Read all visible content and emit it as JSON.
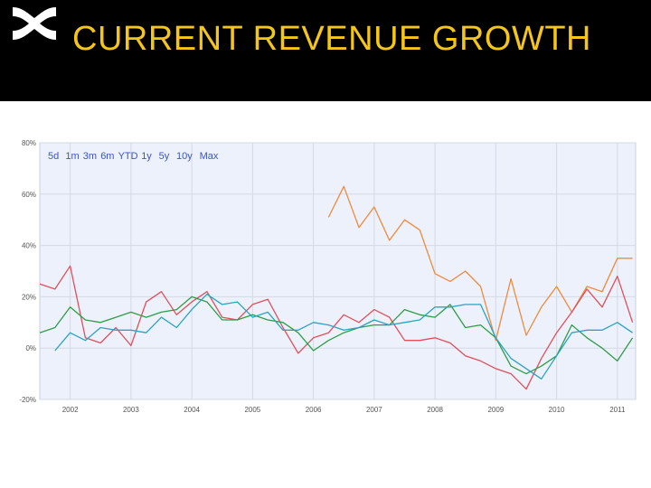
{
  "header": {
    "title": "CURRENT REVENUE GROWTH",
    "logo_icon": "under-armour-logo-icon",
    "title_color": "#f5c518",
    "background": "#000000"
  },
  "range_selector": [
    "5d",
    "1m",
    "3m",
    "6m",
    "YTD",
    "1y",
    "5y",
    "10y",
    "Max"
  ],
  "chart_data": {
    "type": "line",
    "title": "",
    "xlabel": "",
    "ylabel": "",
    "x_ticks": [
      "2002",
      "2003",
      "2004",
      "2005",
      "2006",
      "2007",
      "2008",
      "2009",
      "2010",
      "2011"
    ],
    "y_ticks": [
      "-20%",
      "0%",
      "20%",
      "40%",
      "60%",
      "80%"
    ],
    "ylim": [
      -20,
      80
    ],
    "xlim": [
      2001.5,
      2011.3
    ],
    "grid": true,
    "plot_background": "#edf1fb",
    "series": [
      {
        "color": "#f08a3c",
        "x": [
          2006.25,
          2006.5,
          2006.75,
          2007.0,
          2007.25,
          2007.5,
          2007.75,
          2008.0,
          2008.25,
          2008.5,
          2008.75,
          2009.0,
          2009.25,
          2009.5,
          2009.75,
          2010.0,
          2010.25,
          2010.5,
          2010.75,
          2011.0,
          2011.25
        ],
        "y": [
          51,
          63,
          47,
          55,
          42,
          50,
          46,
          29,
          26,
          30,
          24,
          3,
          27,
          5,
          16,
          24,
          14,
          24,
          22,
          35,
          35
        ]
      },
      {
        "color": "#e0505a",
        "x": [
          2001.5,
          2001.75,
          2002.0,
          2002.25,
          2002.5,
          2002.75,
          2003.0,
          2003.25,
          2003.5,
          2003.75,
          2004.0,
          2004.25,
          2004.5,
          2004.75,
          2005.0,
          2005.25,
          2005.5,
          2005.75,
          2006.0,
          2006.25,
          2006.5,
          2006.75,
          2007.0,
          2007.25,
          2007.5,
          2007.75,
          2008.0,
          2008.25,
          2008.5,
          2008.75,
          2009.0,
          2009.25,
          2009.5,
          2009.75,
          2010.0,
          2010.25,
          2010.5,
          2010.75,
          2011.0,
          2011.25
        ],
        "y": [
          25,
          23,
          32,
          4,
          2,
          8,
          1,
          18,
          22,
          13,
          18,
          22,
          12,
          11,
          17,
          19,
          8,
          -2,
          4,
          6,
          13,
          10,
          15,
          12,
          3,
          3,
          4,
          2,
          -3,
          -5,
          -8,
          -10,
          -16,
          -4,
          6,
          14,
          23,
          16,
          28,
          10
        ]
      },
      {
        "color": "#2e9e46",
        "x": [
          2001.5,
          2001.75,
          2002.0,
          2002.25,
          2002.5,
          2002.75,
          2003.0,
          2003.25,
          2003.5,
          2003.75,
          2004.0,
          2004.25,
          2004.5,
          2004.75,
          2005.0,
          2005.25,
          2005.5,
          2005.75,
          2006.0,
          2006.25,
          2006.5,
          2006.75,
          2007.0,
          2007.25,
          2007.5,
          2007.75,
          2008.0,
          2008.25,
          2008.5,
          2008.75,
          2009.0,
          2009.25,
          2009.5,
          2009.75,
          2010.0,
          2010.25,
          2010.5,
          2010.75,
          2011.0,
          2011.25
        ],
        "y": [
          6,
          8,
          16,
          11,
          10,
          12,
          14,
          12,
          14,
          15,
          20,
          18,
          11,
          11,
          13,
          11,
          10,
          6,
          -1,
          3,
          6,
          8,
          9,
          9,
          15,
          13,
          12,
          17,
          8,
          9,
          4,
          -7,
          -10,
          -7,
          -3,
          9,
          4,
          0,
          -5,
          4
        ]
      },
      {
        "color": "#2ba3c4",
        "x": [
          2001.75,
          2002.0,
          2002.25,
          2002.5,
          2002.75,
          2003.0,
          2003.25,
          2003.5,
          2003.75,
          2004.0,
          2004.25,
          2004.5,
          2004.75,
          2005.0,
          2005.25,
          2005.5,
          2005.75,
          2006.0,
          2006.25,
          2006.5,
          2006.75,
          2007.0,
          2007.25,
          2007.5,
          2007.75,
          2008.0,
          2008.25,
          2008.5,
          2008.75,
          2009.0,
          2009.25,
          2009.5,
          2009.75,
          2010.0,
          2010.25,
          2010.5,
          2010.75,
          2011.0,
          2011.25
        ],
        "y": [
          -1,
          6,
          3,
          8,
          7,
          7,
          6,
          12,
          8,
          15,
          21,
          17,
          18,
          12,
          14,
          7,
          7,
          10,
          9,
          7,
          8,
          11,
          9,
          10,
          11,
          16,
          16,
          17,
          17,
          4,
          -4,
          -8,
          -12,
          -3,
          6,
          7,
          7,
          10,
          6
        ]
      }
    ]
  }
}
